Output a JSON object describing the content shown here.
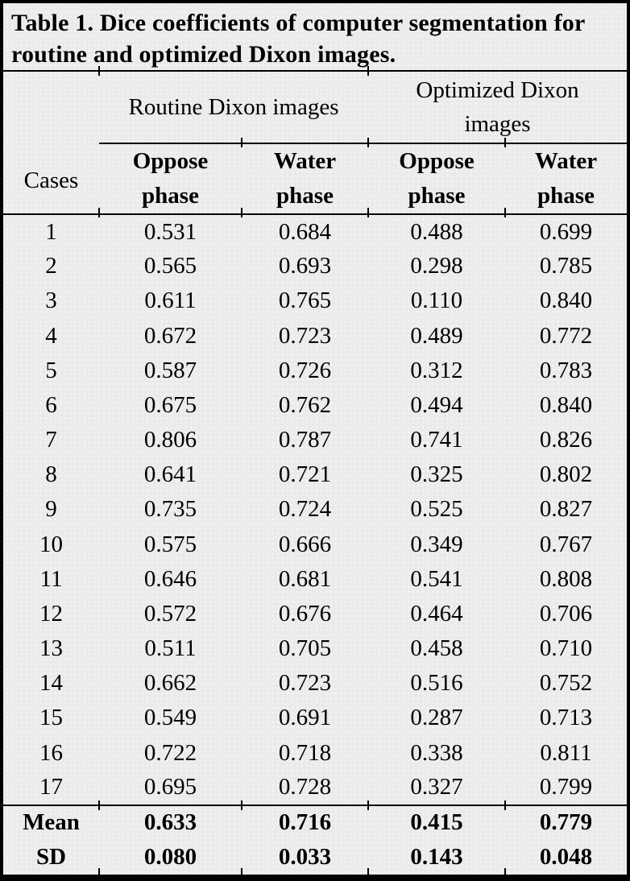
{
  "title": "Table 1. Dice coefficients of computer segmentation for routine and optimized Dixon images.",
  "colors": {
    "background": "#ebebeb",
    "border": "#000000",
    "text": "#000000"
  },
  "table": {
    "corner_header": "Cases",
    "group_headers": [
      "Routine Dixon images",
      "Optimized Dixon images"
    ],
    "sub_headers": [
      "Oppose phase",
      "Water phase",
      "Oppose phase",
      "Water phase"
    ],
    "rows": [
      {
        "case": "1",
        "values": [
          "0.531",
          "0.684",
          "0.488",
          "0.699"
        ]
      },
      {
        "case": "2",
        "values": [
          "0.565",
          "0.693",
          "0.298",
          "0.785"
        ]
      },
      {
        "case": "3",
        "values": [
          "0.611",
          "0.765",
          "0.110",
          "0.840"
        ]
      },
      {
        "case": "4",
        "values": [
          "0.672",
          "0.723",
          "0.489",
          "0.772"
        ]
      },
      {
        "case": "5",
        "values": [
          "0.587",
          "0.726",
          "0.312",
          "0.783"
        ]
      },
      {
        "case": "6",
        "values": [
          "0.675",
          "0.762",
          "0.494",
          "0.840"
        ]
      },
      {
        "case": "7",
        "values": [
          "0.806",
          "0.787",
          "0.741",
          "0.826"
        ]
      },
      {
        "case": "8",
        "values": [
          "0.641",
          "0.721",
          "0.325",
          "0.802"
        ]
      },
      {
        "case": "9",
        "values": [
          "0.735",
          "0.724",
          "0.525",
          "0.827"
        ]
      },
      {
        "case": "10",
        "values": [
          "0.575",
          "0.666",
          "0.349",
          "0.767"
        ]
      },
      {
        "case": "11",
        "values": [
          "0.646",
          "0.681",
          "0.541",
          "0.808"
        ]
      },
      {
        "case": "12",
        "values": [
          "0.572",
          "0.676",
          "0.464",
          "0.706"
        ]
      },
      {
        "case": "13",
        "values": [
          "0.511",
          "0.705",
          "0.458",
          "0.710"
        ]
      },
      {
        "case": "14",
        "values": [
          "0.662",
          "0.723",
          "0.516",
          "0.752"
        ]
      },
      {
        "case": "15",
        "values": [
          "0.549",
          "0.691",
          "0.287",
          "0.713"
        ]
      },
      {
        "case": "16",
        "values": [
          "0.722",
          "0.718",
          "0.338",
          "0.811"
        ]
      },
      {
        "case": "17",
        "values": [
          "0.695",
          "0.728",
          "0.327",
          "0.799"
        ]
      }
    ],
    "summary_rows": [
      {
        "label": "Mean",
        "values": [
          "0.633",
          "0.716",
          "0.415",
          "0.779"
        ]
      },
      {
        "label": "SD",
        "values": [
          "0.080",
          "0.033",
          "0.143",
          "0.048"
        ]
      }
    ]
  }
}
